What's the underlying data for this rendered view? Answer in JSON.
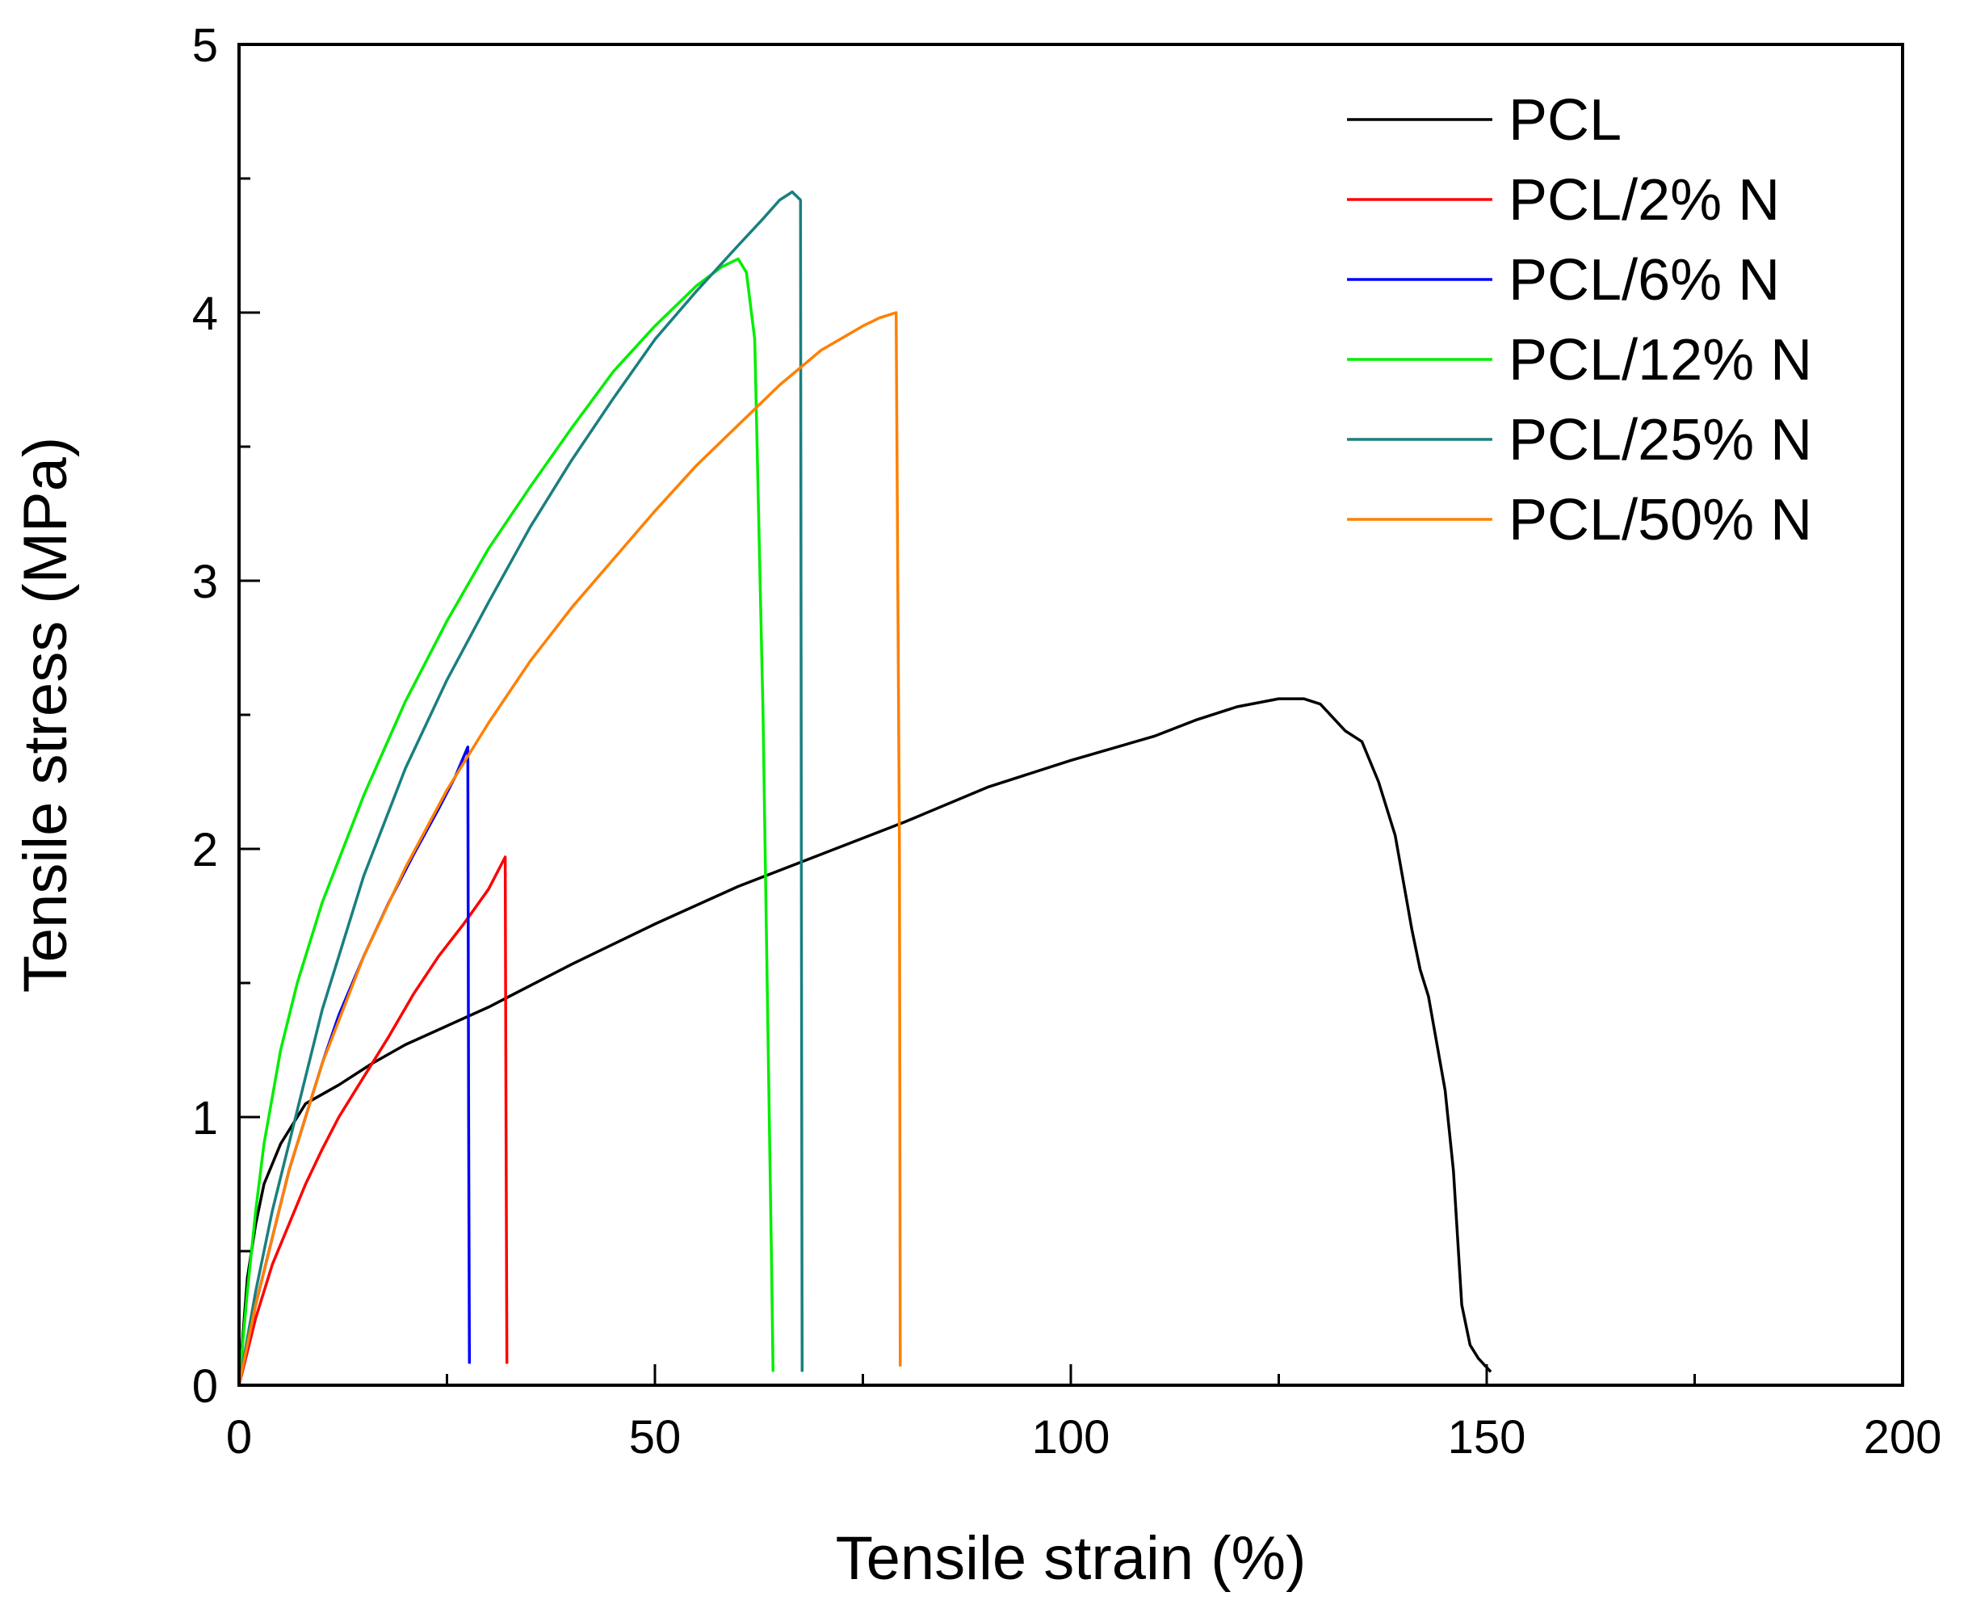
{
  "chart_data": {
    "type": "line",
    "title": "",
    "xlabel": "Tensile strain (%)",
    "ylabel": "Tensile stress (MPa)",
    "xlim": [
      0,
      200
    ],
    "ylim": [
      0,
      5
    ],
    "x_ticks": [
      "0",
      "50",
      "100",
      "150",
      "200"
    ],
    "y_ticks": [
      "0",
      "1",
      "2",
      "3",
      "4",
      "5"
    ],
    "grid": false,
    "legend_position": "top-right",
    "series": [
      {
        "name": "PCL",
        "color": "#000000",
        "x": [
          0,
          1,
          2,
          3,
          5,
          8,
          12,
          16,
          20,
          25,
          30,
          35,
          40,
          50,
          60,
          70,
          80,
          90,
          100,
          110,
          115,
          120,
          125,
          128,
          130,
          133,
          135,
          137,
          139,
          141,
          142,
          143,
          145,
          146,
          147,
          148,
          149,
          150.5
        ],
        "y": [
          0,
          0.4,
          0.6,
          0.75,
          0.9,
          1.05,
          1.12,
          1.2,
          1.27,
          1.34,
          1.41,
          1.49,
          1.57,
          1.72,
          1.86,
          1.98,
          2.1,
          2.23,
          2.33,
          2.42,
          2.48,
          2.53,
          2.56,
          2.56,
          2.54,
          2.44,
          2.4,
          2.25,
          2.05,
          1.7,
          1.55,
          1.45,
          1.1,
          0.8,
          0.3,
          0.15,
          0.1,
          0.05
        ]
      },
      {
        "name": "PCL/2% N",
        "color": "#ff0000",
        "x": [
          0,
          2,
          4,
          6,
          8,
          10,
          12,
          15,
          18,
          21,
          24,
          27,
          30,
          32,
          32.1,
          32.2
        ],
        "y": [
          0,
          0.25,
          0.45,
          0.6,
          0.75,
          0.88,
          1.0,
          1.15,
          1.3,
          1.46,
          1.6,
          1.72,
          1.85,
          1.97,
          1.0,
          0.08
        ]
      },
      {
        "name": "PCL/6% N",
        "color": "#0000ff",
        "x": [
          0,
          2,
          4,
          6,
          8,
          10,
          12,
          15,
          18,
          21,
          24,
          26,
          27.5,
          27.6,
          27.7
        ],
        "y": [
          0,
          0.3,
          0.55,
          0.8,
          1.0,
          1.2,
          1.38,
          1.6,
          1.8,
          1.98,
          2.15,
          2.27,
          2.38,
          1.0,
          0.08
        ]
      },
      {
        "name": "PCL/12% N",
        "color": "#00ee00",
        "x": [
          0,
          1,
          2,
          3,
          5,
          7,
          10,
          15,
          20,
          25,
          30,
          35,
          40,
          45,
          50,
          55,
          58,
          60,
          61,
          62,
          63,
          63.5,
          64,
          64.2
        ],
        "y": [
          0,
          0.35,
          0.65,
          0.9,
          1.25,
          1.5,
          1.8,
          2.2,
          2.55,
          2.85,
          3.12,
          3.35,
          3.57,
          3.78,
          3.95,
          4.1,
          4.17,
          4.2,
          4.15,
          3.9,
          2.5,
          1.5,
          0.5,
          0.05
        ]
      },
      {
        "name": "PCL/25% N",
        "color": "#1a7f7f",
        "x": [
          0,
          2,
          4,
          6,
          8,
          10,
          15,
          20,
          25,
          30,
          35,
          40,
          45,
          50,
          55,
          60,
          63,
          65,
          66.5,
          67.5,
          67.6,
          67.7
        ],
        "y": [
          0,
          0.35,
          0.65,
          0.9,
          1.15,
          1.4,
          1.9,
          2.3,
          2.63,
          2.92,
          3.2,
          3.45,
          3.68,
          3.9,
          4.08,
          4.25,
          4.35,
          4.42,
          4.45,
          4.42,
          2.0,
          0.05
        ]
      },
      {
        "name": "PCL/50% N",
        "color": "#ff8000",
        "x": [
          0,
          2,
          4,
          6,
          8,
          10,
          15,
          20,
          25,
          30,
          35,
          40,
          45,
          50,
          55,
          60,
          65,
          70,
          75,
          77,
          79,
          79.4,
          79.5
        ],
        "y": [
          0,
          0.3,
          0.55,
          0.8,
          1.0,
          1.2,
          1.6,
          1.93,
          2.22,
          2.47,
          2.7,
          2.9,
          3.08,
          3.26,
          3.43,
          3.58,
          3.73,
          3.86,
          3.95,
          3.98,
          4.0,
          2.0,
          0.07
        ]
      }
    ]
  }
}
